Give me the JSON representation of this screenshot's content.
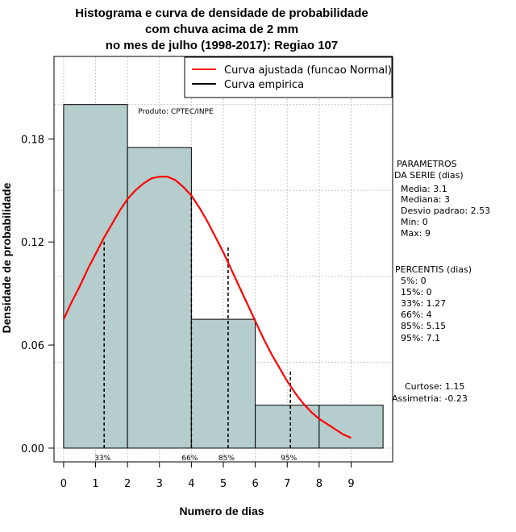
{
  "chart_data": {
    "type": "bar",
    "title_lines": [
      "Histograma e curva de densidade de probabilidade",
      "com chuva acima de 2 mm",
      "no mes de julho (1998-2017): Regiao 107"
    ],
    "xlabel": "Numero de dias",
    "ylabel": "Densidade de probabilidade",
    "xlim": [
      -0.3,
      10.3
    ],
    "ylim": [
      -0.008,
      0.228
    ],
    "x_ticks": [
      "0",
      "1",
      "2",
      "3",
      "4",
      "5",
      "6",
      "7",
      "8",
      "9"
    ],
    "y_ticks": [
      "0.00",
      "0.06",
      "0.12",
      "0.18"
    ],
    "bars": [
      {
        "x0": 0,
        "x1": 2,
        "value": 0.2
      },
      {
        "x0": 2,
        "x1": 4,
        "value": 0.175
      },
      {
        "x0": 4,
        "x1": 6,
        "value": 0.075
      },
      {
        "x0": 6,
        "x1": 8,
        "value": 0.025
      },
      {
        "x0": 8,
        "x1": 10,
        "value": 0.025
      }
    ],
    "curve": {
      "name": "Curva ajustada (funcao Normal)",
      "color": "#ff0000",
      "x": [
        0,
        0.25,
        0.5,
        0.75,
        1,
        1.25,
        1.5,
        1.75,
        2,
        2.25,
        2.5,
        2.75,
        3,
        3.25,
        3.5,
        3.75,
        4,
        4.25,
        4.5,
        4.75,
        5,
        5.25,
        5.5,
        5.75,
        6,
        6.25,
        6.5,
        6.75,
        7,
        7.25,
        7.5,
        7.75,
        8,
        8.25,
        8.5,
        8.75,
        9
      ],
      "y": [
        0.075,
        0.085,
        0.094,
        0.104,
        0.113,
        0.122,
        0.13,
        0.138,
        0.145,
        0.15,
        0.154,
        0.157,
        0.158,
        0.158,
        0.156,
        0.152,
        0.147,
        0.14,
        0.132,
        0.123,
        0.114,
        0.104,
        0.094,
        0.084,
        0.074,
        0.064,
        0.055,
        0.047,
        0.039,
        0.032,
        0.026,
        0.021,
        0.017,
        0.014,
        0.011,
        0.008,
        0.006
      ]
    },
    "empirical_legend": "Curva empirica",
    "empirical_color": "#000000",
    "bar_color": "#b5cdcc",
    "percentile_lines": [
      {
        "label": "33%",
        "x": 1.27,
        "y": 0.121
      },
      {
        "label": "66%",
        "x": 4,
        "y": 0.147
      },
      {
        "label": "85%",
        "x": 5.15,
        "y": 0.117
      },
      {
        "label": "95%",
        "x": 7.1,
        "y": 0.046
      }
    ],
    "legend_position": "top-right",
    "grid": true
  },
  "produto": "Produto: CPTEC/INPE",
  "parametros": {
    "title1": "PARAMETROS",
    "title2": "DA SERIE (dias)",
    "lines": [
      "Media: 3.1",
      "Mediana: 3",
      "Desvio padrao: 2.53",
      "Min: 0",
      "Max: 9"
    ]
  },
  "percentis": {
    "title": "PERCENTIS (dias)",
    "lines": [
      "5%: 0",
      "15%: 0",
      "33%: 1.27",
      "66%: 4",
      "85%: 5.15",
      "95%: 7.1"
    ]
  },
  "forma": {
    "lines": [
      "Curtose: 1.15",
      "Assimetria: -0.23"
    ]
  }
}
